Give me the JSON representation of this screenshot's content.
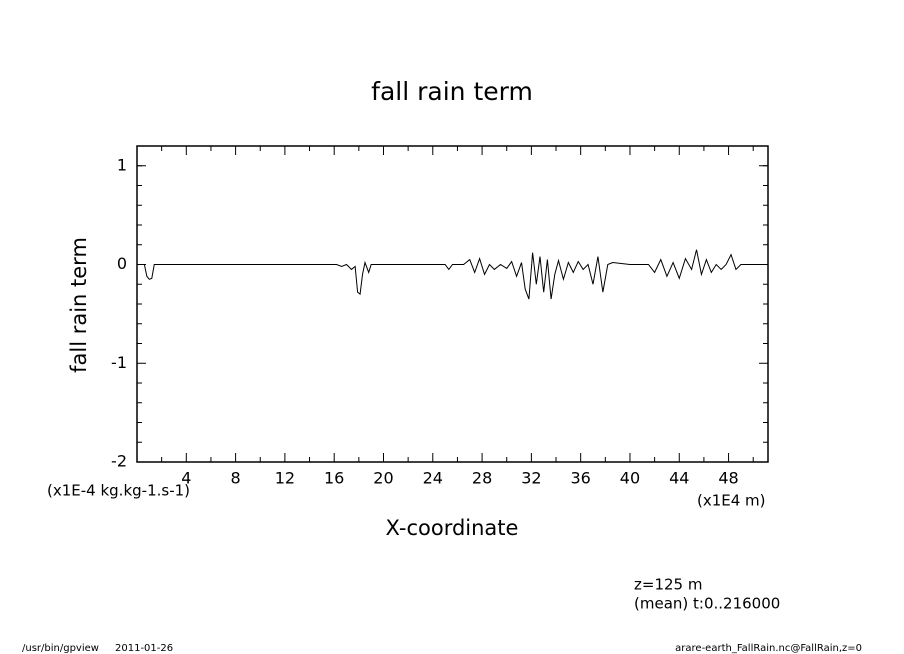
{
  "chart_data": {
    "type": "line",
    "title": "fall rain term",
    "y_label": "fall rain term",
    "x_label": "X-coordinate",
    "y_unit": "(x1E-4 kg.kg-1.s-1)",
    "x_unit": "(x1E4 m)",
    "annotations": [
      "z=125 m",
      "(mean) t:0..216000"
    ],
    "footer_left": [
      "/usr/bin/gpview",
      "2011-01-26"
    ],
    "footer_right": "arare-earth_FallRain.nc@FallRain,z=0",
    "xlim": [
      0,
      51.2
    ],
    "ylim": [
      -2,
      1.2
    ],
    "xticks": [
      4,
      8,
      12,
      16,
      20,
      24,
      28,
      32,
      36,
      40,
      44,
      48
    ],
    "xminorticks": [
      2,
      6,
      10,
      14,
      18,
      22,
      26,
      30,
      34,
      38,
      42,
      46,
      50
    ],
    "yticks": [
      -2,
      -1,
      0,
      1
    ],
    "yminorticks": [
      -1.8,
      -1.6,
      -1.4,
      -1.2,
      -0.8,
      -0.6,
      -0.4,
      -0.2,
      0.2,
      0.4,
      0.6,
      0.8,
      1.0
    ],
    "color": "#000000",
    "x": [
      0,
      0.6,
      0.8,
      1.0,
      1.2,
      1.4,
      16.2,
      16.6,
      17.0,
      17.4,
      17.7,
      17.9,
      18.1,
      18.3,
      18.5,
      18.8,
      19.0,
      25.0,
      25.3,
      25.6,
      26.5,
      27.0,
      27.4,
      27.8,
      28.2,
      28.6,
      29.0,
      29.5,
      30.0,
      30.4,
      30.8,
      31.2,
      31.5,
      31.8,
      32.1,
      32.4,
      32.7,
      33.0,
      33.3,
      33.6,
      33.9,
      34.2,
      34.6,
      35.0,
      35.4,
      35.8,
      36.2,
      36.6,
      37.0,
      37.4,
      37.8,
      38.2,
      38.6,
      40.0,
      41.5,
      42.0,
      42.5,
      43.0,
      43.5,
      44.0,
      44.5,
      45.0,
      45.4,
      45.8,
      46.2,
      46.6,
      47.0,
      47.4,
      47.8,
      48.2,
      48.6,
      49.0,
      51.2
    ],
    "values": [
      0,
      0,
      -0.12,
      -0.15,
      -0.14,
      0,
      0,
      -0.02,
      0,
      -0.05,
      -0.02,
      -0.28,
      -0.3,
      -0.1,
      0.02,
      -0.08,
      0,
      0,
      -0.05,
      0,
      0,
      0.05,
      -0.08,
      0.06,
      -0.1,
      0,
      -0.05,
      0,
      -0.04,
      0.03,
      -0.12,
      0.02,
      -0.25,
      -0.35,
      0.12,
      -0.2,
      0.08,
      -0.28,
      0.05,
      -0.35,
      -0.1,
      0.04,
      -0.15,
      0.02,
      -0.08,
      0.03,
      -0.05,
      0,
      -0.2,
      0.08,
      -0.28,
      0,
      0.02,
      0,
      0,
      -0.08,
      0.05,
      -0.12,
      0.02,
      -0.14,
      0.06,
      -0.05,
      0.15,
      -0.1,
      0.05,
      -0.08,
      0,
      -0.05,
      0,
      0.1,
      -0.05,
      0,
      0
    ]
  }
}
